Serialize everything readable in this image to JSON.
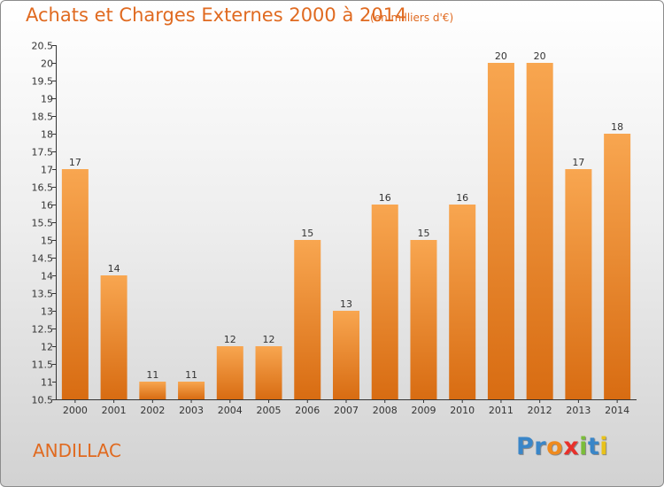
{
  "header": {
    "title": "Achats et Charges Externes 2000 à 2014",
    "subtitle": "(en milliers d'€)"
  },
  "footer": {
    "commune": "ANDILLAC",
    "logo_letters": [
      "P",
      "r",
      "o",
      "x",
      "i",
      "t",
      "i"
    ],
    "logo_colors": [
      "#3a86c8",
      "#3a86c8",
      "#ef8a1e",
      "#e8302a",
      "#7bbd3a",
      "#3a86c8",
      "#e8c21a"
    ]
  },
  "chart_data": {
    "type": "bar",
    "title": "Achats et Charges Externes 2000 à 2014",
    "subtitle": "(en milliers d'€)",
    "categories": [
      "2000",
      "2001",
      "2002",
      "2003",
      "2004",
      "2005",
      "2006",
      "2007",
      "2008",
      "2009",
      "2010",
      "2011",
      "2012",
      "2013",
      "2014"
    ],
    "values": [
      17,
      14,
      11,
      11,
      12,
      12,
      15,
      13,
      16,
      15,
      16,
      20,
      20,
      17,
      18
    ],
    "ylim": [
      10.5,
      20.5
    ],
    "yticks": [
      "10.5",
      "11",
      "11.5",
      "12",
      "12.5",
      "13",
      "13.5",
      "14",
      "14.5",
      "15",
      "15.5",
      "16",
      "16.5",
      "17",
      "17.5",
      "18",
      "18.5",
      "19",
      "19.5",
      "20",
      "20.5"
    ],
    "xlabel": "",
    "ylabel": "",
    "grid": false,
    "bar_color": "#f08a2a"
  }
}
